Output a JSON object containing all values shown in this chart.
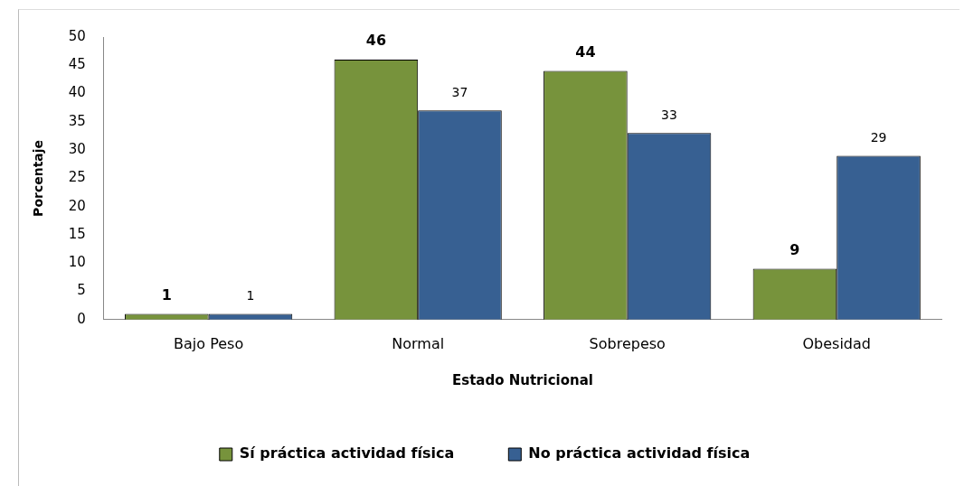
{
  "chart_data": {
    "type": "bar",
    "xlabel": "Estado Nutricional",
    "ylabel": "Porcentaje",
    "categories": [
      "Bajo Peso",
      "Normal",
      "Sobrepeso",
      "Obesidad"
    ],
    "series": [
      {
        "name": "Sí práctica actividad física",
        "color": "#77933c",
        "values": [
          1,
          46,
          44,
          9
        ]
      },
      {
        "name": "No práctica actividad física",
        "color": "#376092",
        "values": [
          1,
          37,
          33,
          29
        ]
      }
    ],
    "ylim": [
      0,
      50
    ],
    "yticks": [
      0,
      5,
      10,
      15,
      20,
      25,
      30,
      35,
      40,
      45,
      50
    ],
    "grid": false,
    "legend": "bottom",
    "data_labels": true
  }
}
